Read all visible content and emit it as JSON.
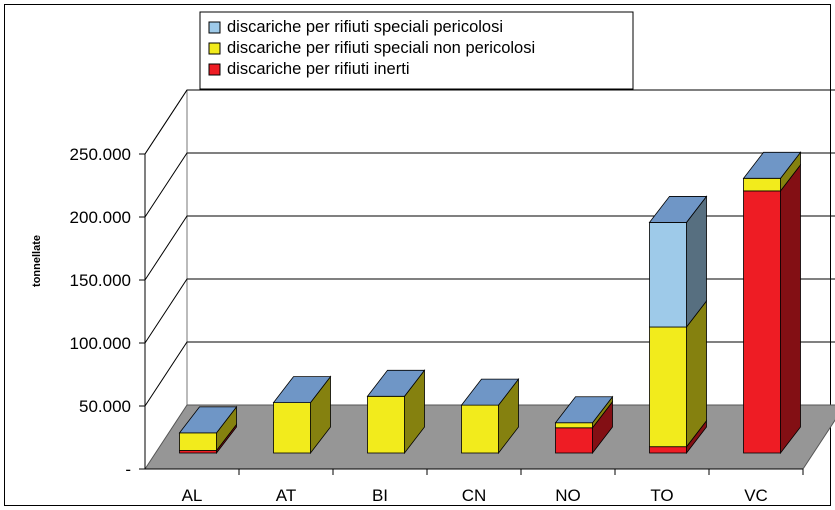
{
  "chart_data": {
    "type": "bar",
    "stacked": true,
    "three_d": true,
    "categories": [
      "AL",
      "AT",
      "BI",
      "CN",
      "NO",
      "TO",
      "VC"
    ],
    "series": [
      {
        "name": "discariche per rifiuti inerti",
        "color": "#ee1c24",
        "values": [
          2000,
          0,
          0,
          0,
          20000,
          5000,
          208000
        ]
      },
      {
        "name": "discariche per rifiuti speciali non pericolosi",
        "color": "#f2eb1c",
        "values": [
          14000,
          40000,
          45000,
          38000,
          4000,
          95000,
          10000
        ]
      },
      {
        "name": "discariche per rifiuti speciali pericolosi",
        "color": "#9ecae9",
        "values": [
          0,
          0,
          0,
          0,
          0,
          83000,
          0
        ]
      }
    ],
    "ylabel": "tonnellate",
    "ylim": [
      0,
      250000
    ],
    "yticks": [
      0,
      50000,
      100000,
      150000,
      200000,
      250000
    ],
    "ytick_labels": [
      "-",
      "50.000",
      "100.000",
      "150.000",
      "200.000",
      "250.000"
    ],
    "grid": true,
    "legend_position": "top"
  }
}
